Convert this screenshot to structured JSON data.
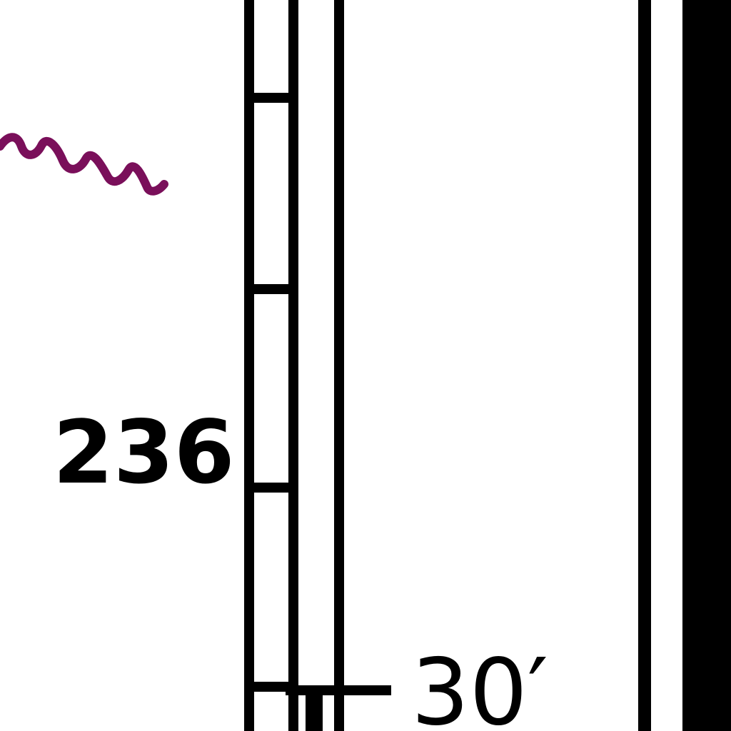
{
  "map": {
    "labels": {
      "number": "236",
      "measurement": "30′"
    },
    "colors": {
      "background": "#ffffff",
      "ink": "#000000",
      "squiggle": "#7a0f5a"
    },
    "features": [
      "scale-bar",
      "thin-vertical-line",
      "thick-boundary-bar",
      "purple-squiggle",
      "tick-mark"
    ]
  }
}
